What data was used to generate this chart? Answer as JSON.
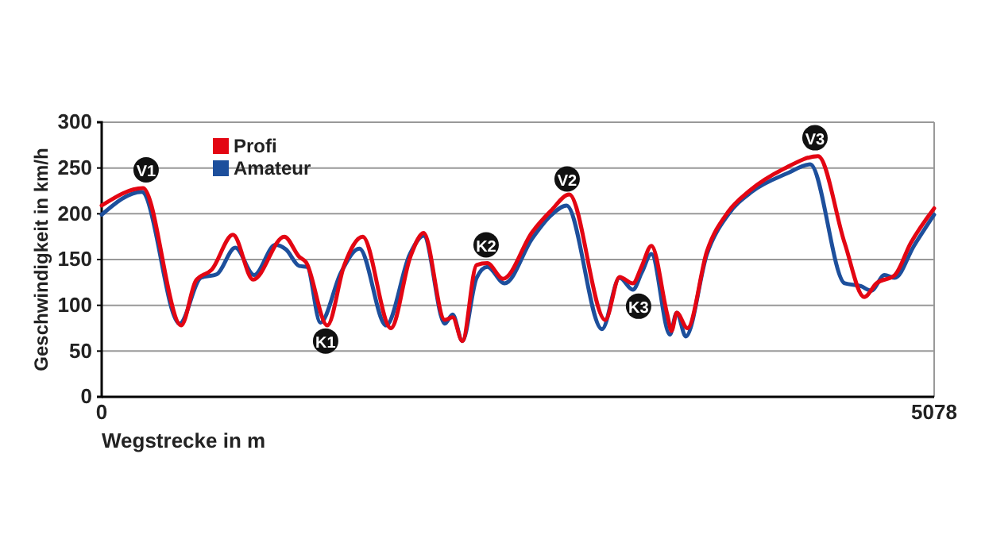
{
  "chart_data": {
    "type": "line",
    "xlabel": "Wegstrecke in m",
    "ylabel": "Geschwindigkeit in km/h",
    "xlim": [
      0,
      5078
    ],
    "xticks": [
      0,
      5078
    ],
    "ylim": [
      0,
      300
    ],
    "yticks": [
      0,
      50,
      100,
      150,
      200,
      250,
      300
    ],
    "grid": "y",
    "legend": "top left",
    "marker": "none",
    "line_style": "solid",
    "series": [
      {
        "name": "Profi",
        "color": "#e30613",
        "x": [
          0,
          252,
          485,
          575,
          672,
          801,
          924,
          1114,
          1205,
          1247,
          1376,
          1480,
          1592,
          1764,
          1883,
          1964,
          2093,
          2141,
          2200,
          2287,
          2352,
          2448,
          2626,
          2739,
          2852,
          3072,
          3159,
          3240,
          3295,
          3353,
          3450,
          3476,
          3508,
          3573,
          3692,
          3821,
          3951,
          4160,
          4370,
          4532,
          4651,
          4726,
          4838,
          4935,
          5078
        ],
        "values": [
          209,
          228,
          78,
          127,
          139,
          177,
          128,
          175,
          153,
          147,
          78,
          144,
          175,
          75,
          153,
          179,
          84,
          87,
          61,
          144,
          146,
          129,
          180,
          203,
          221,
          84,
          131,
          124,
          143,
          165,
          90,
          72,
          92,
          75,
          159,
          202,
          225,
          249,
          263,
          168,
          109,
          124,
          133,
          168,
          206
        ]
      },
      {
        "name": "Amateur",
        "color": "#1d4f9c",
        "x": [
          0,
          245,
          475,
          605,
          703,
          815,
          930,
          1059,
          1124,
          1205,
          1253,
          1334,
          1460,
          1572,
          1735,
          1880,
          1964,
          2093,
          2141,
          2200,
          2287,
          2352,
          2458,
          2626,
          2739,
          2836,
          3052,
          3159,
          3240,
          3295,
          3353,
          3466,
          3508,
          3563,
          3692,
          3821,
          3966,
          4180,
          4322,
          4532,
          4630,
          4694,
          4775,
          4838,
          4955,
          5078
        ],
        "values": [
          199,
          224,
          80,
          130,
          134,
          163,
          133,
          166,
          161,
          143,
          142,
          81,
          136,
          162,
          78,
          156,
          176,
          80,
          90,
          61,
          130,
          142,
          124,
          173,
          198,
          209,
          74,
          130,
          117,
          136,
          156,
          68,
          92,
          66,
          156,
          199,
          224,
          244,
          254,
          124,
          121,
          116,
          133,
          130,
          165,
          199
        ]
      }
    ],
    "annotations": [
      {
        "text": "V1",
        "x": 271,
        "y": 248
      },
      {
        "text": "K1",
        "x": 1366,
        "y": 61
      },
      {
        "text": "K2",
        "x": 2345,
        "y": 166
      },
      {
        "text": "V2",
        "x": 2839,
        "y": 238
      },
      {
        "text": "K3",
        "x": 3275,
        "y": 99
      },
      {
        "text": "V3",
        "x": 4351,
        "y": 283
      }
    ]
  }
}
